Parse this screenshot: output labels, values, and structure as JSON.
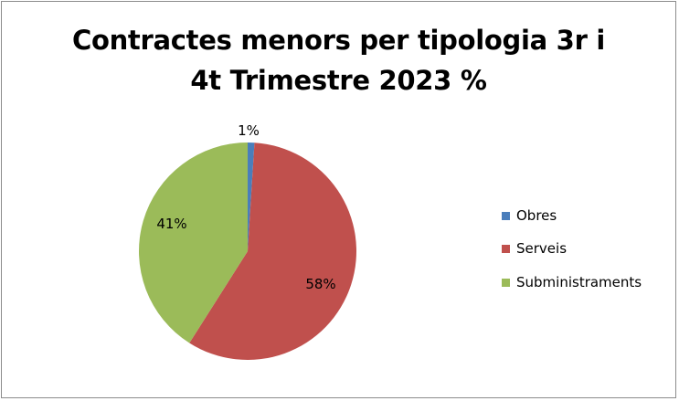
{
  "chart_data": {
    "type": "pie",
    "title_lines": [
      "Contractes menors per tipologia 3r i",
      "4t Trimestre 2023 %"
    ],
    "categories": [
      "Obres",
      "Serveis",
      "Subministraments"
    ],
    "values": [
      1,
      58,
      41
    ],
    "labels": [
      "1%",
      "58%",
      "41%"
    ],
    "colors": [
      "#4a7ebb",
      "#c0504d",
      "#9bbb59"
    ],
    "legend_position": "right"
  }
}
